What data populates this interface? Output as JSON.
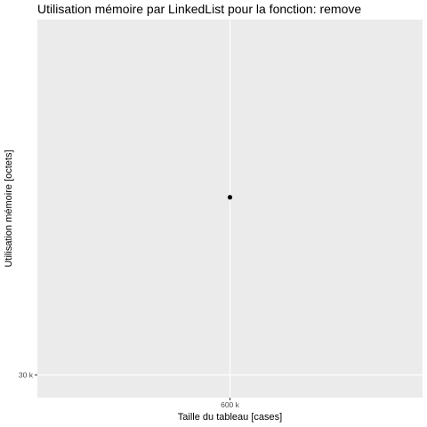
{
  "chart_data": {
    "type": "scatter",
    "title": "Utilisation mémoire par LinkedList pour la fonction: remove",
    "xlabel": "Taille du tableau [cases]",
    "ylabel": "Utilisation mémoire [octets]",
    "x_ticks": [
      {
        "value": 600000,
        "label": "600 k"
      }
    ],
    "y_ticks": [
      {
        "value": 30000,
        "label": "30 k"
      }
    ],
    "xlim": [
      540000,
      660000
    ],
    "ylim": [
      28600,
      52000
    ],
    "grid": true,
    "legend": "none",
    "series": [
      {
        "points": [
          {
            "x": 600000,
            "y": 41000
          }
        ]
      }
    ],
    "colors": {
      "panel_background": "#ebebeb",
      "gridline": "#ffffff",
      "point": "#000000",
      "tick_mark": "#333333"
    }
  }
}
